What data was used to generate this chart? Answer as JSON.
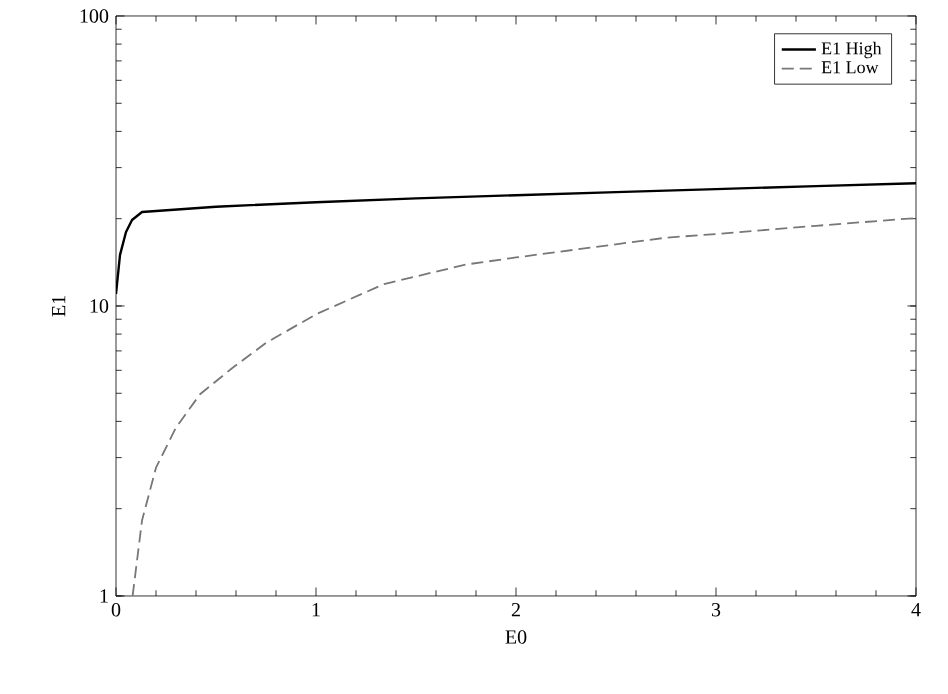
{
  "chart_data": {
    "type": "line",
    "xlabel": "E0",
    "ylabel": "E1",
    "log": "y",
    "xlim": [
      0,
      4
    ],
    "ylim": [
      1,
      100
    ],
    "xticks": [
      0,
      1,
      2,
      3,
      4
    ],
    "yticks": [
      1,
      10,
      100
    ],
    "legend": "top right",
    "grid": false,
    "series": [
      {
        "name": "E1 High",
        "color": "#000000",
        "line_style": "solid",
        "x": [
          0,
          0.02,
          0.05,
          0.08,
          0.13,
          0.5,
          1,
          1.5,
          2,
          2.5,
          3,
          3.5,
          4
        ],
        "values": [
          11,
          15,
          18,
          19.8,
          21.1,
          22,
          22.8,
          23.5,
          24.1,
          24.7,
          25.3,
          25.9,
          26.5
        ]
      },
      {
        "name": "E1 Low",
        "color": "#777777",
        "line_style": "dashed",
        "x": [
          0.083,
          0.13,
          0.2,
          0.3,
          0.42,
          0.58,
          0.75,
          1,
          1.34,
          1.75,
          2,
          2.75,
          3,
          3.5,
          4
        ],
        "values": [
          1,
          1.82,
          2.77,
          3.81,
          4.96,
          6.1,
          7.46,
          9.36,
          11.9,
          13.9,
          14.7,
          17.2,
          17.7,
          18.9,
          20.1
        ]
      }
    ]
  }
}
